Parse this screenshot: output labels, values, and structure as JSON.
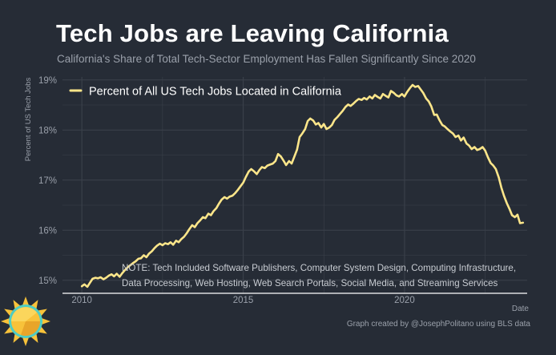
{
  "header": {
    "title": "Tech Jobs are Leaving California",
    "subtitle": "California's Share of Total Tech-Sector Employment Has Fallen Significantly Since 2020"
  },
  "footer": {
    "credit": "Graph created by @JosephPolitano using BLS data"
  },
  "colors": {
    "background": "#262c36",
    "line": "#fde68a",
    "grid": "#3b414b",
    "axis_text": "#9aa0aa"
  },
  "chart_data": {
    "type": "line",
    "title": "Tech Jobs are Leaving California",
    "subtitle": "California's Share of Total Tech-Sector Employment Has Fallen Significantly Since 2020",
    "xlabel": "Date",
    "ylabel": "Percent of US Tech Jobs",
    "xlim": [
      2009.4,
      2023.8
    ],
    "ylim": [
      14.74,
      19.06
    ],
    "x_ticks": [
      2010,
      2015,
      2020
    ],
    "x_tick_labels": [
      "2010",
      "2015",
      "2020"
    ],
    "y_ticks": [
      15,
      16,
      17,
      18,
      19
    ],
    "y_tick_labels": [
      "15%",
      "16%",
      "17%",
      "18%",
      "19%"
    ],
    "grid": true,
    "legend": {
      "position": "top-left"
    },
    "annotation": "NOTE: Tech Included Software Publishers, Computer System Design, Computing Infrastructure, Data Processing, Web Hosting, Web Search Portals, Social Media, and Streaming Services",
    "series": [
      {
        "name": "Percent of All US Tech Jobs Located in California",
        "points": [
          [
            2010.0,
            14.88
          ],
          [
            2010.08,
            14.92
          ],
          [
            2010.17,
            14.87
          ],
          [
            2010.25,
            14.95
          ],
          [
            2010.33,
            15.03
          ],
          [
            2010.42,
            15.05
          ],
          [
            2010.5,
            15.04
          ],
          [
            2010.58,
            15.06
          ],
          [
            2010.67,
            15.02
          ],
          [
            2010.75,
            15.05
          ],
          [
            2010.83,
            15.09
          ],
          [
            2010.92,
            15.12
          ],
          [
            2011.0,
            15.08
          ],
          [
            2011.08,
            15.13
          ],
          [
            2011.17,
            15.07
          ],
          [
            2011.25,
            15.14
          ],
          [
            2011.33,
            15.2
          ],
          [
            2011.42,
            15.26
          ],
          [
            2011.5,
            15.3
          ],
          [
            2011.58,
            15.34
          ],
          [
            2011.67,
            15.38
          ],
          [
            2011.75,
            15.43
          ],
          [
            2011.83,
            15.44
          ],
          [
            2011.92,
            15.5
          ],
          [
            2012.0,
            15.46
          ],
          [
            2012.08,
            15.53
          ],
          [
            2012.17,
            15.58
          ],
          [
            2012.25,
            15.64
          ],
          [
            2012.33,
            15.69
          ],
          [
            2012.42,
            15.73
          ],
          [
            2012.5,
            15.7
          ],
          [
            2012.58,
            15.74
          ],
          [
            2012.67,
            15.72
          ],
          [
            2012.75,
            15.76
          ],
          [
            2012.83,
            15.71
          ],
          [
            2012.92,
            15.79
          ],
          [
            2013.0,
            15.76
          ],
          [
            2013.08,
            15.82
          ],
          [
            2013.17,
            15.87
          ],
          [
            2013.25,
            15.94
          ],
          [
            2013.33,
            16.02
          ],
          [
            2013.42,
            16.1
          ],
          [
            2013.5,
            16.06
          ],
          [
            2013.58,
            16.14
          ],
          [
            2013.67,
            16.2
          ],
          [
            2013.75,
            16.26
          ],
          [
            2013.83,
            16.24
          ],
          [
            2013.92,
            16.33
          ],
          [
            2014.0,
            16.3
          ],
          [
            2014.08,
            16.38
          ],
          [
            2014.17,
            16.44
          ],
          [
            2014.25,
            16.53
          ],
          [
            2014.33,
            16.61
          ],
          [
            2014.42,
            16.66
          ],
          [
            2014.5,
            16.63
          ],
          [
            2014.58,
            16.67
          ],
          [
            2014.67,
            16.69
          ],
          [
            2014.75,
            16.74
          ],
          [
            2014.83,
            16.8
          ],
          [
            2014.92,
            16.88
          ],
          [
            2015.0,
            16.95
          ],
          [
            2015.08,
            17.06
          ],
          [
            2015.17,
            17.17
          ],
          [
            2015.25,
            17.22
          ],
          [
            2015.33,
            17.18
          ],
          [
            2015.42,
            17.12
          ],
          [
            2015.5,
            17.2
          ],
          [
            2015.58,
            17.26
          ],
          [
            2015.67,
            17.24
          ],
          [
            2015.75,
            17.29
          ],
          [
            2015.83,
            17.31
          ],
          [
            2015.92,
            17.33
          ],
          [
            2016.0,
            17.38
          ],
          [
            2016.08,
            17.52
          ],
          [
            2016.17,
            17.47
          ],
          [
            2016.25,
            17.39
          ],
          [
            2016.33,
            17.3
          ],
          [
            2016.42,
            17.38
          ],
          [
            2016.5,
            17.33
          ],
          [
            2016.58,
            17.46
          ],
          [
            2016.67,
            17.61
          ],
          [
            2016.75,
            17.86
          ],
          [
            2016.83,
            17.93
          ],
          [
            2016.92,
            18.02
          ],
          [
            2017.0,
            18.18
          ],
          [
            2017.08,
            18.23
          ],
          [
            2017.17,
            18.19
          ],
          [
            2017.25,
            18.11
          ],
          [
            2017.33,
            18.14
          ],
          [
            2017.42,
            18.05
          ],
          [
            2017.5,
            18.12
          ],
          [
            2017.58,
            18.02
          ],
          [
            2017.67,
            18.05
          ],
          [
            2017.75,
            18.1
          ],
          [
            2017.83,
            18.2
          ],
          [
            2017.92,
            18.26
          ],
          [
            2018.0,
            18.32
          ],
          [
            2018.08,
            18.38
          ],
          [
            2018.17,
            18.46
          ],
          [
            2018.25,
            18.51
          ],
          [
            2018.33,
            18.48
          ],
          [
            2018.42,
            18.53
          ],
          [
            2018.5,
            18.58
          ],
          [
            2018.58,
            18.62
          ],
          [
            2018.67,
            18.6
          ],
          [
            2018.75,
            18.64
          ],
          [
            2018.83,
            18.61
          ],
          [
            2018.92,
            18.67
          ],
          [
            2019.0,
            18.63
          ],
          [
            2019.08,
            18.7
          ],
          [
            2019.17,
            18.66
          ],
          [
            2019.25,
            18.63
          ],
          [
            2019.33,
            18.72
          ],
          [
            2019.42,
            18.68
          ],
          [
            2019.5,
            18.65
          ],
          [
            2019.58,
            18.78
          ],
          [
            2019.67,
            18.74
          ],
          [
            2019.75,
            18.69
          ],
          [
            2019.83,
            18.67
          ],
          [
            2019.92,
            18.72
          ],
          [
            2020.0,
            18.67
          ],
          [
            2020.08,
            18.76
          ],
          [
            2020.17,
            18.84
          ],
          [
            2020.25,
            18.9
          ],
          [
            2020.33,
            18.86
          ],
          [
            2020.42,
            18.88
          ],
          [
            2020.5,
            18.81
          ],
          [
            2020.58,
            18.74
          ],
          [
            2020.67,
            18.63
          ],
          [
            2020.75,
            18.57
          ],
          [
            2020.83,
            18.47
          ],
          [
            2020.92,
            18.3
          ],
          [
            2021.0,
            18.31
          ],
          [
            2021.08,
            18.2
          ],
          [
            2021.17,
            18.1
          ],
          [
            2021.25,
            18.07
          ],
          [
            2021.33,
            18.02
          ],
          [
            2021.42,
            17.97
          ],
          [
            2021.5,
            17.93
          ],
          [
            2021.58,
            17.86
          ],
          [
            2021.67,
            17.89
          ],
          [
            2021.75,
            17.79
          ],
          [
            2021.83,
            17.85
          ],
          [
            2021.92,
            17.73
          ],
          [
            2022.0,
            17.69
          ],
          [
            2022.08,
            17.62
          ],
          [
            2022.17,
            17.66
          ],
          [
            2022.25,
            17.6
          ],
          [
            2022.33,
            17.62
          ],
          [
            2022.42,
            17.66
          ],
          [
            2022.5,
            17.59
          ],
          [
            2022.58,
            17.46
          ],
          [
            2022.67,
            17.34
          ],
          [
            2022.75,
            17.29
          ],
          [
            2022.83,
            17.22
          ],
          [
            2022.92,
            17.05
          ],
          [
            2023.0,
            16.85
          ],
          [
            2023.08,
            16.69
          ],
          [
            2023.17,
            16.54
          ],
          [
            2023.25,
            16.43
          ],
          [
            2023.33,
            16.3
          ],
          [
            2023.42,
            16.26
          ],
          [
            2023.5,
            16.31
          ],
          [
            2023.58,
            16.14
          ],
          [
            2023.67,
            16.15
          ]
        ]
      }
    ]
  }
}
